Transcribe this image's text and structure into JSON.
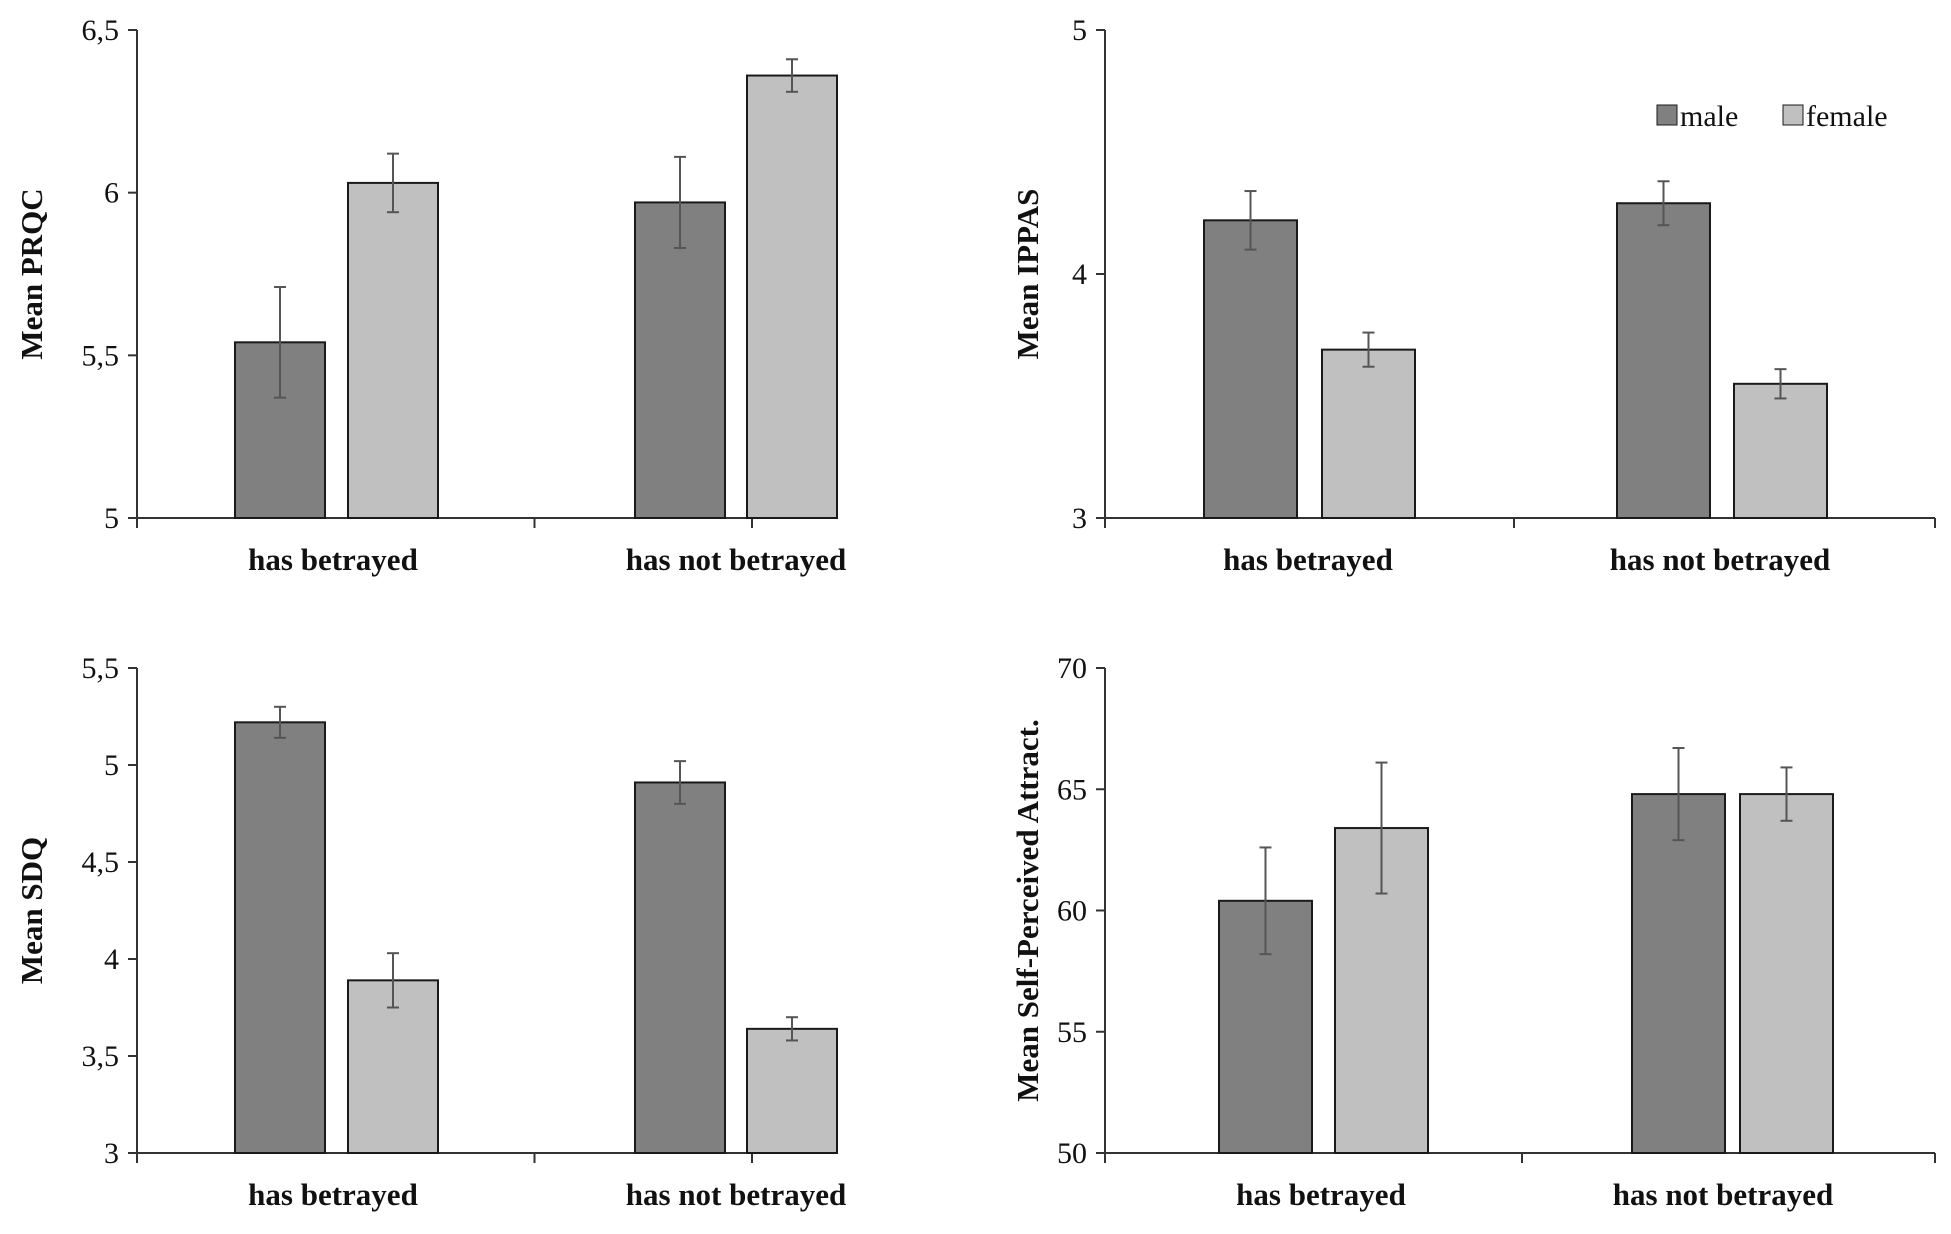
{
  "legend": {
    "entries": [
      {
        "name": "male",
        "color": "#808080"
      },
      {
        "name": "female",
        "color": "#c0c0c0"
      }
    ]
  },
  "chart_data": [
    {
      "type": "bar",
      "title": "",
      "xlabel": "",
      "ylabel": "Mean PRQC",
      "categories": [
        "has betrayed",
        "has not betrayed"
      ],
      "ylim": [
        5,
        6.5
      ],
      "yticks": [
        5,
        5.5,
        6,
        6.5
      ],
      "ytick_labels": [
        "5",
        "5,5",
        "6",
        "6,5"
      ],
      "series": [
        {
          "name": "male",
          "values": [
            5.54,
            5.97
          ],
          "errors": [
            0.17,
            0.14
          ]
        },
        {
          "name": "female",
          "values": [
            6.03,
            6.36
          ],
          "errors": [
            0.09,
            0.05
          ]
        }
      ]
    },
    {
      "type": "bar",
      "title": "",
      "xlabel": "",
      "ylabel": "Mean IPPAS",
      "categories": [
        "has betrayed",
        "has not betrayed"
      ],
      "ylim": [
        3,
        5
      ],
      "yticks": [
        3,
        4,
        5
      ],
      "ytick_labels": [
        "3",
        "4",
        "5"
      ],
      "legend": "top-right",
      "series": [
        {
          "name": "male",
          "values": [
            4.22,
            4.29
          ],
          "errors": [
            0.12,
            0.09
          ]
        },
        {
          "name": "female",
          "values": [
            3.69,
            3.55
          ],
          "errors": [
            0.07,
            0.06
          ]
        }
      ]
    },
    {
      "type": "bar",
      "title": "",
      "xlabel": "",
      "ylabel": "Mean SDQ",
      "categories": [
        "has betrayed",
        "has not betrayed"
      ],
      "ylim": [
        3,
        5.5
      ],
      "yticks": [
        3,
        3.5,
        4,
        4.5,
        5,
        5.5
      ],
      "ytick_labels": [
        "3",
        "3,5",
        "4",
        "4,5",
        "5",
        "5,5"
      ],
      "series": [
        {
          "name": "male",
          "values": [
            5.22,
            4.91
          ],
          "errors": [
            0.08,
            0.11
          ]
        },
        {
          "name": "female",
          "values": [
            3.89,
            3.64
          ],
          "errors": [
            0.14,
            0.06
          ]
        }
      ]
    },
    {
      "type": "bar",
      "title": "",
      "xlabel": "",
      "ylabel": "Mean Self-Perceived Attract.",
      "categories": [
        "has betrayed",
        "has not betrayed"
      ],
      "ylim": [
        50,
        70
      ],
      "yticks": [
        50,
        55,
        60,
        65,
        70
      ],
      "ytick_labels": [
        "50",
        "55",
        "60",
        "65",
        "70"
      ],
      "series": [
        {
          "name": "male",
          "values": [
            60.4,
            64.8
          ],
          "errors": [
            2.2,
            1.9
          ]
        },
        {
          "name": "female",
          "values": [
            63.4,
            64.8
          ],
          "errors": [
            2.7,
            1.1
          ]
        }
      ]
    }
  ]
}
